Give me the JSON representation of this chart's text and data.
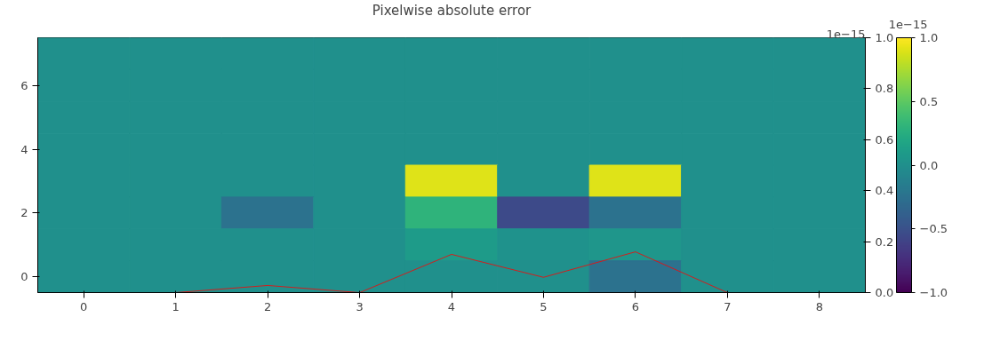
{
  "chart_data": {
    "type": "heatmap",
    "title": "Pixelwise absolute error",
    "categories": [
      "0",
      "1",
      "2",
      "3",
      "4",
      "5",
      "6",
      "7",
      "8"
    ],
    "y_categories": [
      null,
      "6",
      null,
      "4",
      null,
      "2",
      null,
      "0"
    ],
    "cells": [
      [
        0,
        0,
        0,
        0,
        0,
        0,
        0,
        0,
        0
      ],
      [
        0,
        0,
        0,
        0,
        0,
        0,
        0,
        0,
        0
      ],
      [
        0,
        0,
        0,
        0,
        0,
        0,
        0,
        0,
        0
      ],
      [
        0,
        0,
        0,
        0,
        0,
        0,
        0,
        0,
        0
      ],
      [
        0,
        0,
        0,
        0,
        0.9,
        0,
        0.9,
        0,
        0
      ],
      [
        0,
        0,
        -0.25,
        0,
        0.3,
        -0.55,
        -0.25,
        0,
        0
      ],
      [
        0,
        0,
        0,
        0,
        0.1,
        0.02,
        0.05,
        0,
        0
      ],
      [
        0,
        0,
        0,
        0,
        0,
        0,
        -0.25,
        0,
        0
      ]
    ],
    "clim": [
      -1,
      1
    ],
    "cticks": [
      {
        "value": -1,
        "label": "−1.0"
      },
      {
        "value": -0.5,
        "label": "−0.5"
      },
      {
        "value": 0,
        "label": "0.0"
      },
      {
        "value": 0.5,
        "label": "0.5"
      },
      {
        "value": 1,
        "label": "1.0"
      }
    ],
    "series": [
      {
        "type": "line",
        "axis": "y2",
        "color": "#ff0000",
        "values": [
          0,
          0,
          0.028,
          0,
          0.15,
          0.06,
          0.16,
          0,
          0
        ]
      }
    ],
    "y2lim": [
      0,
      1
    ],
    "y2ticks": [
      {
        "value": 0,
        "label": "0.0"
      },
      0.2,
      0.4,
      0.6,
      0.8,
      {
        "value": 1,
        "label": "1.0"
      }
    ],
    "annotations": [
      "1e−15",
      "1e−15"
    ]
  }
}
